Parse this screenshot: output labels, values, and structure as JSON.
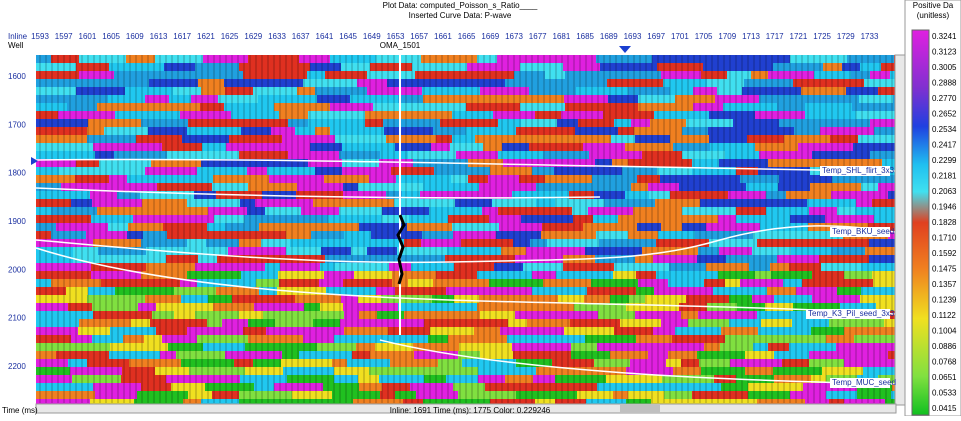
{
  "header": {
    "plot_data": "Plot Data: computed_Poisson_s_Ratio____",
    "curve_data": "Inserted Curve Data: P-wave"
  },
  "section": {
    "inline_label": "Inline",
    "well_label": "Well",
    "well_name": "OMA_1501",
    "inlines": [
      1593,
      1597,
      1601,
      1605,
      1609,
      1613,
      1617,
      1621,
      1625,
      1629,
      1633,
      1637,
      1641,
      1645,
      1649,
      1653,
      1657,
      1661,
      1665,
      1669,
      1673,
      1677,
      1681,
      1685,
      1689,
      1693,
      1697,
      1701,
      1705,
      1709,
      1713,
      1717,
      1721,
      1725,
      1729,
      1733
    ],
    "times": [
      1600,
      1700,
      1800,
      1900,
      2000,
      2100,
      2200
    ],
    "horizons": [
      "Temp_SHL_flirt_3x3",
      "Temp_BKU_seed",
      "Temp_K3_Pil_seed_3x3",
      "Temp_MUC_seed"
    ]
  },
  "status": {
    "axis": "Time (ms)",
    "readout": "Inline: 1691  Time (ms): 1775  Color: 0.229246"
  },
  "colorbar": {
    "title": "Positive Da",
    "unit": "(unitless)",
    "labels": [
      "0.3241",
      "0.3123",
      "0.3005",
      "0.2888",
      "0.2770",
      "0.2652",
      "0.2534",
      "0.2417",
      "0.2299",
      "0.2181",
      "0.2063",
      "0.1946",
      "0.1828",
      "0.1710",
      "0.1592",
      "0.1475",
      "0.1357",
      "0.1239",
      "0.1122",
      "0.1004",
      "0.0886",
      "0.0768",
      "0.0651",
      "0.0533",
      "0.0415"
    ]
  }
}
